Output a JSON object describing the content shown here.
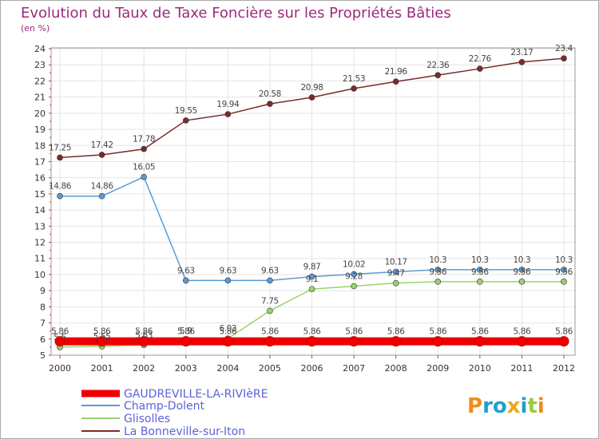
{
  "header": {
    "title": "Evolution du Taux de Taxe Foncière sur les Propriétés Bâties",
    "subtitle": "(en %)"
  },
  "logo": {
    "text": "Proxiti"
  },
  "colors": {
    "title": "#9a2b7a",
    "background": "#ffffff",
    "plot_border": "#999999",
    "axis_tick_marks": "#cc3333",
    "logo_letters": [
      "#f08a1e",
      "#1f9fd6",
      "#1f9fd6",
      "#f0a51e",
      "#1f9fd6",
      "#9acb3c",
      "#f08a1e"
    ]
  },
  "chart_data": {
    "type": "line",
    "title": "Evolution du Taux de Taxe Foncière sur les Propriétés Bâties",
    "subtitle": "(en %)",
    "xlabel": "",
    "ylabel": "",
    "x": [
      "2000",
      "2001",
      "2002",
      "2003",
      "2004",
      "2005",
      "2006",
      "2007",
      "2008",
      "2009",
      "2010",
      "2011",
      "2012"
    ],
    "ylim": [
      5,
      24
    ],
    "yticks": [
      "5",
      "6",
      "7",
      "8",
      "9",
      "10",
      "11",
      "12",
      "13",
      "14",
      "15",
      "16",
      "17",
      "18",
      "19",
      "20",
      "21",
      "22",
      "23",
      "24"
    ],
    "grid": true,
    "legend_position": "bottom-left",
    "series": [
      {
        "name": "GAUDREVILLE-LA-RIVIèRE",
        "color": "#ee0000",
        "values": [
          5.86,
          5.86,
          5.86,
          5.86,
          5.86,
          5.86,
          5.86,
          5.86,
          5.86,
          5.86,
          5.86,
          5.86,
          5.86
        ],
        "labels": [
          "5.86",
          "5.86",
          "5.86",
          "5.86",
          "5.86",
          "5.86",
          "5.86",
          "5.86",
          "5.86",
          "5.86",
          "5.86",
          "5.86",
          "5.86"
        ]
      },
      {
        "name": "Champ-Dolent",
        "color": "#5b9bd5",
        "values": [
          14.86,
          14.86,
          16.05,
          9.63,
          9.63,
          9.63,
          9.87,
          10.02,
          10.17,
          10.3,
          10.3,
          10.3,
          10.3
        ],
        "labels": [
          "14.86",
          "14.86",
          "16.05",
          "9.63",
          "9.63",
          "9.63",
          "9.87",
          "10.02",
          "10.17",
          "10.3",
          "10.3",
          "10.3",
          "10.3"
        ]
      },
      {
        "name": "Glisolles",
        "color": "#99d36b",
        "values": [
          5.5,
          5.55,
          5.63,
          5.9,
          6.03,
          7.75,
          9.1,
          9.28,
          9.47,
          9.56,
          9.56,
          9.56,
          9.56
        ],
        "labels": [
          "5.5",
          "5.55",
          "5.63",
          "5.9",
          "6.03",
          "7.75",
          "9.1",
          "9.28",
          "9.47",
          "9.56",
          "9.56",
          "9.56",
          "9.56"
        ]
      },
      {
        "name": "La Bonneville-sur-Iton",
        "color": "#7a2a2a",
        "values": [
          17.25,
          17.42,
          17.78,
          19.55,
          19.94,
          20.58,
          20.98,
          21.53,
          21.96,
          22.36,
          22.76,
          23.17,
          23.4
        ],
        "labels": [
          "17.25",
          "17.42",
          "17.78",
          "19.55",
          "19.94",
          "20.58",
          "20.98",
          "21.53",
          "21.96",
          "22.36",
          "22.76",
          "23.17",
          "23.4"
        ]
      }
    ]
  }
}
